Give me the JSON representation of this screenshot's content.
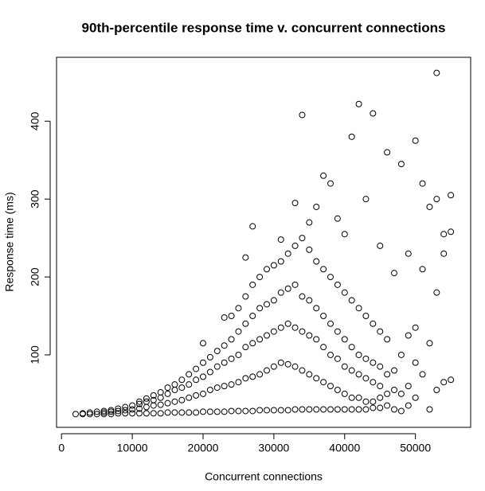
{
  "chart_data": {
    "type": "scatter",
    "title": "90th-percentile response time v. concurrent connections",
    "x_label": "Concurrent connections",
    "y_label": "Response time (ms)",
    "color": "#000000",
    "xlim": [
      -700,
      57800
    ],
    "ylim": [
      7,
      482
    ],
    "xticks": [
      0,
      10000,
      20000,
      30000,
      40000,
      50000
    ],
    "yticks": [
      100,
      200,
      300,
      400
    ],
    "x": [
      2000,
      3000,
      3000,
      4000,
      4000,
      5000,
      5000,
      6000,
      6000,
      6000,
      7000,
      7000,
      7000,
      8000,
      8000,
      8000,
      9000,
      9000,
      9000,
      10000,
      10000,
      10000,
      11000,
      11000,
      11000,
      11000,
      12000,
      12000,
      12000,
      12000,
      13000,
      13000,
      13000,
      13000,
      14000,
      14000,
      14000,
      14000,
      15000,
      15000,
      15000,
      15000,
      16000,
      16000,
      16000,
      16000,
      17000,
      17000,
      17000,
      17000,
      18000,
      18000,
      18000,
      18000,
      19000,
      19000,
      19000,
      19000,
      20000,
      20000,
      20000,
      20000,
      20000,
      21000,
      21000,
      21000,
      21000,
      22000,
      22000,
      22000,
      22000,
      23000,
      23000,
      23000,
      23000,
      23000,
      24000,
      24000,
      24000,
      24000,
      24000,
      25000,
      25000,
      25000,
      25000,
      25000,
      26000,
      26000,
      26000,
      26000,
      26000,
      26000,
      27000,
      27000,
      27000,
      27000,
      27000,
      27000,
      28000,
      28000,
      28000,
      28000,
      28000,
      29000,
      29000,
      29000,
      29000,
      29000,
      30000,
      30000,
      30000,
      30000,
      30000,
      31000,
      31000,
      31000,
      31000,
      31000,
      31000,
      32000,
      32000,
      32000,
      32000,
      32000,
      33000,
      33000,
      33000,
      33000,
      33000,
      33000,
      34000,
      34000,
      34000,
      34000,
      34000,
      34000,
      35000,
      35000,
      35000,
      35000,
      35000,
      35000,
      36000,
      36000,
      36000,
      36000,
      36000,
      36000,
      37000,
      37000,
      37000,
      37000,
      37000,
      37000,
      38000,
      38000,
      38000,
      38000,
      38000,
      38000,
      39000,
      39000,
      39000,
      39000,
      39000,
      39000,
      40000,
      40000,
      40000,
      40000,
      40000,
      40000,
      41000,
      41000,
      41000,
      41000,
      41000,
      41000,
      42000,
      42000,
      42000,
      42000,
      42000,
      42000,
      43000,
      43000,
      43000,
      43000,
      43000,
      43000,
      44000,
      44000,
      44000,
      44000,
      44000,
      44000,
      45000,
      45000,
      45000,
      45000,
      45000,
      45000,
      46000,
      46000,
      46000,
      46000,
      46000,
      47000,
      47000,
      47000,
      47000,
      48000,
      48000,
      48000,
      48000,
      49000,
      49000,
      49000,
      49000,
      50000,
      50000,
      50000,
      50000,
      51000,
      51000,
      51000,
      52000,
      52000,
      52000,
      53000,
      53000,
      53000,
      53000,
      54000,
      54000,
      54000,
      55000,
      55000,
      55000
    ],
    "values": [
      24,
      24,
      25,
      24,
      26,
      24,
      27,
      24,
      26,
      28,
      24,
      27,
      29,
      25,
      28,
      31,
      25,
      29,
      33,
      25,
      30,
      35,
      25,
      31,
      37,
      40,
      25,
      33,
      40,
      44,
      25,
      35,
      42,
      48,
      25,
      36,
      45,
      52,
      26,
      38,
      50,
      58,
      26,
      40,
      55,
      62,
      26,
      42,
      58,
      68,
      26,
      45,
      62,
      75,
      26,
      48,
      68,
      82,
      27,
      50,
      72,
      90,
      115,
      27,
      55,
      78,
      97,
      27,
      58,
      85,
      105,
      27,
      60,
      90,
      112,
      148,
      28,
      62,
      95,
      120,
      150,
      28,
      65,
      100,
      130,
      160,
      28,
      70,
      110,
      140,
      175,
      225,
      28,
      72,
      115,
      150,
      190,
      265,
      29,
      75,
      120,
      160,
      200,
      29,
      80,
      125,
      165,
      210,
      29,
      85,
      130,
      170,
      215,
      29,
      90,
      135,
      180,
      220,
      248,
      29,
      88,
      140,
      185,
      230,
      30,
      85,
      135,
      190,
      240,
      295,
      30,
      80,
      130,
      175,
      250,
      408,
      30,
      75,
      125,
      170,
      235,
      270,
      30,
      70,
      120,
      160,
      220,
      290,
      30,
      65,
      110,
      150,
      210,
      330,
      30,
      60,
      100,
      140,
      200,
      320,
      30,
      55,
      95,
      130,
      190,
      275,
      30,
      50,
      85,
      120,
      180,
      255,
      30,
      45,
      80,
      110,
      170,
      380,
      30,
      45,
      75,
      100,
      160,
      422,
      30,
      40,
      70,
      95,
      150,
      300,
      32,
      40,
      65,
      90,
      140,
      410,
      32,
      45,
      60,
      85,
      130,
      240,
      35,
      50,
      75,
      120,
      360,
      30,
      55,
      80,
      205,
      28,
      50,
      100,
      345,
      35,
      60,
      125,
      230,
      45,
      90,
      135,
      375,
      75,
      210,
      320,
      30,
      115,
      290,
      55,
      180,
      300,
      462,
      65,
      255,
      230,
      68,
      305,
      258
    ]
  }
}
